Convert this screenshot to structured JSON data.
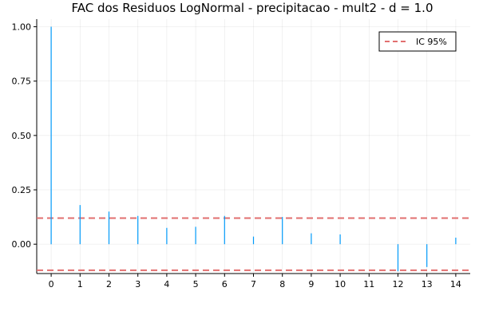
{
  "chart_data": {
    "type": "bar",
    "title": "FAC dos Residuos  LogNormal - precipitacao - mult2 - d = 1.0",
    "xlabel": "",
    "ylabel": "",
    "x": [
      0,
      1,
      2,
      3,
      4,
      5,
      6,
      7,
      8,
      9,
      10,
      11,
      12,
      13,
      14
    ],
    "xticks": [
      "0",
      "1",
      "2",
      "3",
      "4",
      "5",
      "6",
      "7",
      "8",
      "9",
      "10",
      "11",
      "12",
      "13",
      "14"
    ],
    "yticks": [
      "0.00",
      "0.25",
      "0.50",
      "0.75",
      "1.00"
    ],
    "ytick_values": [
      0.0,
      0.25,
      0.5,
      0.75,
      1.0
    ],
    "xlim": [
      -0.5,
      14.5
    ],
    "ylim": [
      -0.135,
      1.035
    ],
    "grid": true,
    "series": [
      {
        "values": [
          1.0,
          0.18,
          0.15,
          0.13,
          0.075,
          0.08,
          0.13,
          0.035,
          0.125,
          0.05,
          0.045,
          0.0,
          -0.125,
          -0.105,
          0.03
        ],
        "color": "#009af9"
      }
    ],
    "reference_lines": [
      {
        "name": "IC 95%",
        "values": [
          0.12,
          -0.12
        ],
        "color": "#e26f6f",
        "style": "dashed"
      }
    ],
    "legend": {
      "position": "top-right",
      "entries": [
        "IC 95%"
      ]
    }
  }
}
